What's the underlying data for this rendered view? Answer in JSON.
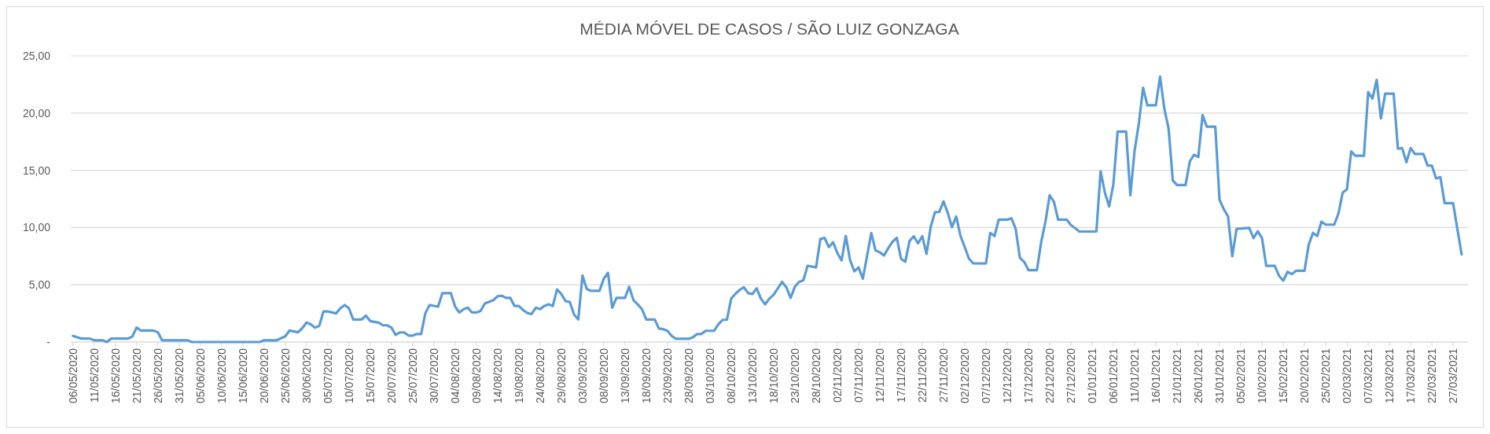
{
  "chart_data": {
    "type": "line",
    "title": "MÉDIA MÓVEL DE CASOS / SÃO LUIZ GONZAGA",
    "xlim": [
      "2020-05-05T12:00",
      "2021-03-30T12:00"
    ],
    "ylim": [
      0,
      25
    ],
    "yticks": [
      {
        "value": 0,
        "label": "-"
      },
      {
        "value": 5,
        "label": "5,00"
      },
      {
        "value": 10,
        "label": "10,00"
      },
      {
        "value": 15,
        "label": "15,00"
      },
      {
        "value": 20,
        "label": "20,00"
      },
      {
        "value": 25,
        "label": "25,00"
      }
    ],
    "xticks": [
      {
        "value": "2020-05-06",
        "label": "06/05/2020"
      },
      {
        "value": "2020-05-11",
        "label": "11/05/2020"
      },
      {
        "value": "2020-05-16",
        "label": "16/05/2020"
      },
      {
        "value": "2020-05-21",
        "label": "21/05/2020"
      },
      {
        "value": "2020-05-26",
        "label": "26/05/2020"
      },
      {
        "value": "2020-05-31",
        "label": "31/05/2020"
      },
      {
        "value": "2020-06-05",
        "label": "05/06/2020"
      },
      {
        "value": "2020-06-10",
        "label": "10/06/2020"
      },
      {
        "value": "2020-06-15",
        "label": "15/06/2020"
      },
      {
        "value": "2020-06-20",
        "label": "20/06/2020"
      },
      {
        "value": "2020-06-25",
        "label": "25/06/2020"
      },
      {
        "value": "2020-06-30",
        "label": "30/06/2020"
      },
      {
        "value": "2020-07-05",
        "label": "05/07/2020"
      },
      {
        "value": "2020-07-10",
        "label": "10/07/2020"
      },
      {
        "value": "2020-07-15",
        "label": "15/07/2020"
      },
      {
        "value": "2020-07-20",
        "label": "20/07/2020"
      },
      {
        "value": "2020-07-25",
        "label": "25/07/2020"
      },
      {
        "value": "2020-07-30",
        "label": "30/07/2020"
      },
      {
        "value": "2020-08-04",
        "label": "04/08/2020"
      },
      {
        "value": "2020-08-09",
        "label": "09/08/2020"
      },
      {
        "value": "2020-08-14",
        "label": "14/08/2020"
      },
      {
        "value": "2020-08-19",
        "label": "19/08/2020"
      },
      {
        "value": "2020-08-24",
        "label": "24/08/2020"
      },
      {
        "value": "2020-08-29",
        "label": "29/08/2020"
      },
      {
        "value": "2020-09-03",
        "label": "03/09/2020"
      },
      {
        "value": "2020-09-08",
        "label": "08/09/2020"
      },
      {
        "value": "2020-09-13",
        "label": "13/09/2020"
      },
      {
        "value": "2020-09-18",
        "label": "18/09/2020"
      },
      {
        "value": "2020-09-23",
        "label": "23/09/2020"
      },
      {
        "value": "2020-09-28",
        "label": "28/09/2020"
      },
      {
        "value": "2020-10-03",
        "label": "03/10/2020"
      },
      {
        "value": "2020-10-08",
        "label": "08/10/2020"
      },
      {
        "value": "2020-10-13",
        "label": "13/10/2020"
      },
      {
        "value": "2020-10-18",
        "label": "18/10/2020"
      },
      {
        "value": "2020-10-23",
        "label": "23/10/2020"
      },
      {
        "value": "2020-10-28",
        "label": "28/10/2020"
      },
      {
        "value": "2020-11-02",
        "label": "02/11/2020"
      },
      {
        "value": "2020-11-07",
        "label": "07/11/2020"
      },
      {
        "value": "2020-11-12",
        "label": "12/11/2020"
      },
      {
        "value": "2020-11-17",
        "label": "17/11/2020"
      },
      {
        "value": "2020-11-22",
        "label": "22/11/2020"
      },
      {
        "value": "2020-11-27",
        "label": "27/11/2020"
      },
      {
        "value": "2020-12-02",
        "label": "02/12/2020"
      },
      {
        "value": "2020-12-07",
        "label": "07/12/2020"
      },
      {
        "value": "2020-12-12",
        "label": "12/12/2020"
      },
      {
        "value": "2020-12-17",
        "label": "17/12/2020"
      },
      {
        "value": "2020-12-22",
        "label": "22/12/2020"
      },
      {
        "value": "2020-12-27",
        "label": "27/12/2020"
      },
      {
        "value": "2021-01-01",
        "label": "01/01/2021"
      },
      {
        "value": "2021-01-06",
        "label": "06/01/2021"
      },
      {
        "value": "2021-01-11",
        "label": "11/01/2021"
      },
      {
        "value": "2021-01-16",
        "label": "16/01/2021"
      },
      {
        "value": "2021-01-21",
        "label": "21/01/2021"
      },
      {
        "value": "2021-01-26",
        "label": "26/01/2021"
      },
      {
        "value": "2021-01-31",
        "label": "31/01/2021"
      },
      {
        "value": "2021-02-05",
        "label": "05/02/2021"
      },
      {
        "value": "2021-02-10",
        "label": "10/02/2021"
      },
      {
        "value": "2021-02-15",
        "label": "15/02/2021"
      },
      {
        "value": "2021-02-20",
        "label": "20/02/2021"
      },
      {
        "value": "2021-02-25",
        "label": "25/02/2021"
      },
      {
        "value": "2021-03-02",
        "label": "02/03/2021"
      },
      {
        "value": "2021-03-07",
        "label": "07/03/2021"
      },
      {
        "value": "2021-03-12",
        "label": "12/03/2021"
      },
      {
        "value": "2021-03-17",
        "label": "17/03/2021"
      },
      {
        "value": "2021-03-22",
        "label": "22/03/2021"
      },
      {
        "value": "2021-03-27",
        "label": "27/03/2021"
      }
    ],
    "grid": "y",
    "marker": "none",
    "line_style": "solid",
    "x": [
      "2020-05-06",
      "2020-05-08",
      "2020-05-10",
      "2020-05-11",
      "2020-05-13",
      "2020-05-14",
      "2020-05-15",
      "2020-05-19",
      "2020-05-20",
      "2020-05-21",
      "2020-05-22",
      "2020-05-25",
      "2020-05-26",
      "2020-05-27",
      "2020-06-02",
      "2020-06-03",
      "2020-06-19",
      "2020-06-20",
      "2020-06-23",
      "2020-06-25",
      "2020-06-26",
      "2020-06-28",
      "2020-06-29",
      "2020-06-30",
      "2020-07-01",
      "2020-07-02",
      "2020-07-03",
      "2020-07-04",
      "2020-07-05",
      "2020-07-07",
      "2020-07-08",
      "2020-07-09",
      "2020-07-10",
      "2020-07-11",
      "2020-07-13",
      "2020-07-14",
      "2020-07-15",
      "2020-07-17",
      "2020-07-18",
      "2020-07-19",
      "2020-07-20",
      "2020-07-21",
      "2020-07-22",
      "2020-07-23",
      "2020-07-24",
      "2020-07-25",
      "2020-07-26",
      "2020-07-27",
      "2020-07-28",
      "2020-07-29",
      "2020-07-31",
      "2020-08-01",
      "2020-08-03",
      "2020-08-04",
      "2020-08-05",
      "2020-08-06",
      "2020-08-07",
      "2020-08-08",
      "2020-08-09",
      "2020-08-10",
      "2020-08-11",
      "2020-08-13",
      "2020-08-14",
      "2020-08-15",
      "2020-08-16",
      "2020-08-17",
      "2020-08-18",
      "2020-08-19",
      "2020-08-20",
      "2020-08-21",
      "2020-08-22",
      "2020-08-23",
      "2020-08-24",
      "2020-08-25",
      "2020-08-26",
      "2020-08-27",
      "2020-08-28",
      "2020-08-29",
      "2020-08-30",
      "2020-08-31",
      "2020-09-01",
      "2020-09-02",
      "2020-09-03",
      "2020-09-04",
      "2020-09-05",
      "2020-09-07",
      "2020-09-08",
      "2020-09-09",
      "2020-09-10",
      "2020-09-11",
      "2020-09-13",
      "2020-09-14",
      "2020-09-15",
      "2020-09-16",
      "2020-09-17",
      "2020-09-18",
      "2020-09-20",
      "2020-09-21",
      "2020-09-22",
      "2020-09-23",
      "2020-09-24",
      "2020-09-25",
      "2020-09-28",
      "2020-09-29",
      "2020-09-30",
      "2020-10-01",
      "2020-10-02",
      "2020-10-04",
      "2020-10-05",
      "2020-10-06",
      "2020-10-07",
      "2020-10-08",
      "2020-10-09",
      "2020-10-10",
      "2020-10-11",
      "2020-10-12",
      "2020-10-13",
      "2020-10-14",
      "2020-10-15",
      "2020-10-16",
      "2020-10-17",
      "2020-10-18",
      "2020-10-19",
      "2020-10-20",
      "2020-10-21",
      "2020-10-22",
      "2020-10-23",
      "2020-10-24",
      "2020-10-25",
      "2020-10-26",
      "2020-10-28",
      "2020-10-29",
      "2020-10-30",
      "2020-10-31",
      "2020-11-01",
      "2020-11-02",
      "2020-11-03",
      "2020-11-04",
      "2020-11-05",
      "2020-11-06",
      "2020-11-07",
      "2020-11-08",
      "2020-11-09",
      "2020-11-10",
      "2020-11-11",
      "2020-11-12",
      "2020-11-13",
      "2020-11-14",
      "2020-11-15",
      "2020-11-16",
      "2020-11-17",
      "2020-11-18",
      "2020-11-19",
      "2020-11-20",
      "2020-11-21",
      "2020-11-22",
      "2020-11-23",
      "2020-11-24",
      "2020-11-25",
      "2020-11-26",
      "2020-11-27",
      "2020-11-28",
      "2020-11-29",
      "2020-11-30",
      "2020-12-01",
      "2020-12-02",
      "2020-12-03",
      "2020-12-04",
      "2020-12-07",
      "2020-12-08",
      "2020-12-09",
      "2020-12-10",
      "2020-12-12",
      "2020-12-13",
      "2020-12-14",
      "2020-12-15",
      "2020-12-16",
      "2020-12-17",
      "2020-12-19",
      "2020-12-20",
      "2020-12-21",
      "2020-12-22",
      "2020-12-23",
      "2020-12-24",
      "2020-12-26",
      "2020-12-27",
      "2020-12-28",
      "2020-12-29",
      "2021-01-02",
      "2021-01-03",
      "2021-01-04",
      "2021-01-05",
      "2021-01-06",
      "2021-01-07",
      "2021-01-09",
      "2021-01-10",
      "2021-01-11",
      "2021-01-12",
      "2021-01-13",
      "2021-01-14",
      "2021-01-16",
      "2021-01-17",
      "2021-01-18",
      "2021-01-19",
      "2021-01-20",
      "2021-01-21",
      "2021-01-23",
      "2021-01-24",
      "2021-01-25",
      "2021-01-26",
      "2021-01-27",
      "2021-01-28",
      "2021-01-30",
      "2021-01-31",
      "2021-02-01",
      "2021-02-02",
      "2021-02-03",
      "2021-02-04",
      "2021-02-07",
      "2021-02-08",
      "2021-02-09",
      "2021-02-10",
      "2021-02-11",
      "2021-02-13",
      "2021-02-14",
      "2021-02-15",
      "2021-02-16",
      "2021-02-17",
      "2021-02-18",
      "2021-02-20",
      "2021-02-21",
      "2021-02-22",
      "2021-02-23",
      "2021-02-24",
      "2021-02-25",
      "2021-02-27",
      "2021-02-28",
      "2021-03-01",
      "2021-03-02",
      "2021-03-03",
      "2021-03-04",
      "2021-03-06",
      "2021-03-07",
      "2021-03-08",
      "2021-03-09",
      "2021-03-10",
      "2021-03-11",
      "2021-03-13",
      "2021-03-14",
      "2021-03-15",
      "2021-03-16",
      "2021-03-17",
      "2021-03-18",
      "2021-03-20",
      "2021-03-21",
      "2021-03-22",
      "2021-03-23",
      "2021-03-24",
      "2021-03-25",
      "2021-03-27",
      "2021-03-28",
      "2021-03-29"
    ],
    "series": [
      {
        "color": "#5b9bd5",
        "values": [
          0.53,
          0.3,
          0.3,
          0.15,
          0.15,
          0,
          0.3,
          0.3,
          0.48,
          1.26,
          1.0,
          1.0,
          0.85,
          0.15,
          0.15,
          0,
          0,
          0.15,
          0.15,
          0.5,
          1.0,
          0.85,
          1.2,
          1.7,
          1.55,
          1.26,
          1.4,
          2.67,
          2.67,
          2.5,
          2.95,
          3.23,
          2.95,
          1.97,
          1.97,
          2.3,
          1.83,
          1.69,
          1.46,
          1.46,
          1.26,
          0.62,
          0.84,
          0.84,
          0.56,
          0.56,
          0.7,
          0.7,
          2.53,
          3.23,
          3.09,
          4.27,
          4.27,
          3.09,
          2.58,
          2.87,
          3.0,
          2.58,
          2.58,
          2.72,
          3.37,
          3.65,
          4.0,
          4.04,
          3.85,
          3.85,
          3.15,
          3.15,
          2.8,
          2.53,
          2.44,
          3.0,
          2.87,
          3.15,
          3.29,
          3.15,
          4.6,
          4.2,
          3.57,
          3.5,
          2.4,
          1.97,
          5.81,
          4.63,
          4.47,
          4.47,
          5.53,
          6.04,
          3.0,
          3.85,
          3.85,
          4.83,
          3.65,
          3.29,
          2.87,
          1.97,
          1.97,
          1.18,
          1.12,
          0.98,
          0.53,
          0.28,
          0.28,
          0.42,
          0.7,
          0.7,
          0.98,
          0.98,
          1.55,
          1.94,
          1.94,
          3.79,
          4.21,
          4.55,
          4.78,
          4.27,
          4.19,
          4.69,
          3.79,
          3.29,
          3.79,
          4.13,
          4.69,
          5.25,
          4.78,
          3.85,
          4.83,
          5.25,
          5.39,
          6.66,
          6.52,
          8.99,
          9.1,
          8.29,
          8.71,
          7.78,
          7.13,
          9.27,
          7.16,
          6.18,
          6.52,
          5.53,
          7.5,
          9.52,
          8.0,
          7.84,
          7.56,
          8.2,
          8.76,
          9.1,
          7.28,
          7.0,
          8.82,
          9.24,
          8.62,
          9.24,
          7.7,
          10.08,
          11.35,
          11.35,
          12.28,
          11.29,
          10.03,
          10.96,
          9.27,
          8.29,
          7.28,
          6.88,
          6.86,
          9.53,
          9.25,
          10.69,
          10.69,
          10.8,
          9.88,
          7.34,
          7.0,
          6.28,
          6.28,
          8.73,
          10.51,
          12.82,
          12.25,
          10.69,
          10.69,
          10.22,
          9.94,
          9.65,
          9.65,
          14.92,
          13.05,
          11.84,
          13.77,
          18.38,
          18.38,
          12.82,
          16.73,
          19.1,
          22.21,
          20.68,
          20.68,
          23.19,
          20.39,
          18.66,
          14.11,
          13.71,
          13.71,
          15.78,
          16.36,
          16.16,
          19.82,
          18.81,
          18.81,
          12.41,
          11.61,
          10.97,
          7.49,
          9.88,
          9.97,
          9.07,
          9.68,
          9.07,
          6.65,
          6.65,
          5.79,
          5.36,
          6.13,
          5.93,
          6.22,
          6.22,
          8.5,
          9.53,
          9.25,
          10.51,
          10.25,
          10.25,
          11.23,
          13.05,
          13.34,
          16.65,
          16.27,
          16.27,
          21.83,
          21.26,
          22.9,
          19.53,
          21.69,
          21.69,
          16.88,
          16.94,
          15.7,
          16.94,
          16.42,
          16.42,
          15.41,
          15.41,
          14.29,
          14.4,
          12.13,
          12.13,
          9.88,
          7.66
        ]
      }
    ]
  }
}
